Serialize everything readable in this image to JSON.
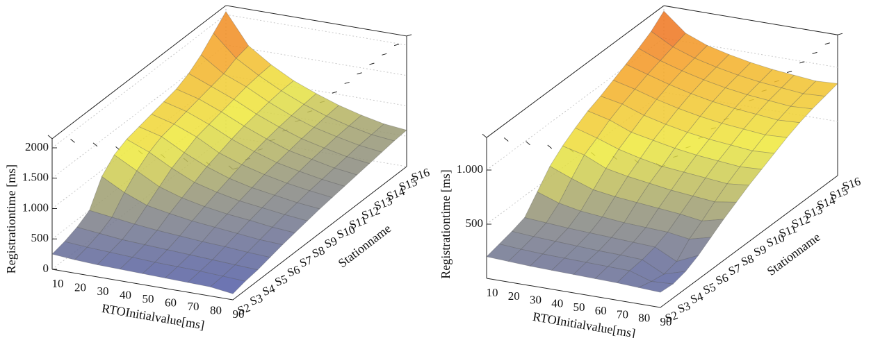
{
  "chart_data": [
    {
      "type": "surface",
      "x": [
        10,
        20,
        30,
        40,
        50,
        60,
        70,
        80,
        90
      ],
      "xlim": [
        10,
        90
      ],
      "xticks": [
        10,
        20,
        30,
        40,
        50,
        60,
        70,
        80,
        90
      ],
      "categories": [
        "S2",
        "S3",
        "S4",
        "S5",
        "S6",
        "S7",
        "S8",
        "S9",
        "S10",
        "S11",
        "S12",
        "S13",
        "S14",
        "S15",
        "S16"
      ],
      "x_label": "RTOInitialvalue[ms]",
      "y_label": "Stationname",
      "z_label": "Registrationtime [ms]",
      "zlim": [
        0,
        2150
      ],
      "zticks": [
        0,
        500,
        {
          "value": 1000,
          "label": "1.000"
        },
        {
          "value": 1500,
          "label": "1.500"
        },
        2000
      ],
      "colormap": [
        "#3f4cb2",
        "#8c8c7c",
        "#eeea3c",
        "#f4a323",
        "#e8451b"
      ],
      "grid": true,
      "z": [
        [
          250,
          220,
          200,
          190,
          180,
          170,
          160,
          150,
          100
        ],
        [
          300,
          270,
          250,
          230,
          210,
          200,
          190,
          170,
          150
        ],
        [
          380,
          340,
          300,
          280,
          260,
          240,
          220,
          200,
          180
        ],
        [
          500,
          450,
          400,
          360,
          330,
          300,
          280,
          250,
          230
        ],
        [
          900,
          700,
          550,
          480,
          420,
          380,
          340,
          300,
          280
        ],
        [
          1100,
          900,
          700,
          580,
          500,
          440,
          400,
          350,
          320
        ],
        [
          1200,
          1050,
          850,
          680,
          580,
          500,
          450,
          400,
          360
        ],
        [
          1250,
          1150,
          950,
          780,
          650,
          560,
          500,
          440,
          400
        ],
        [
          1300,
          1200,
          1050,
          850,
          720,
          620,
          540,
          480,
          430
        ],
        [
          1350,
          1250,
          1100,
          920,
          780,
          660,
          580,
          510,
          460
        ],
        [
          1400,
          1300,
          1150,
          980,
          830,
          700,
          620,
          540,
          490
        ],
        [
          1500,
          1350,
          1200,
          1020,
          870,
          740,
          650,
          570,
          520
        ],
        [
          1650,
          1400,
          1250,
          1060,
          900,
          770,
          680,
          600,
          550
        ],
        [
          1850,
          1500,
          1280,
          1090,
          930,
          800,
          700,
          620,
          580
        ],
        [
          2050,
          1550,
          1300,
          1100,
          950,
          820,
          720,
          640,
          600
        ]
      ]
    },
    {
      "type": "surface",
      "x": [
        10,
        20,
        30,
        40,
        50,
        60,
        70,
        80,
        90
      ],
      "xlim": [
        10,
        90
      ],
      "xticks": [
        10,
        20,
        30,
        40,
        50,
        60,
        70,
        80,
        90
      ],
      "categories": [
        "S2",
        "S3",
        "S4",
        "S5",
        "S6",
        "S7",
        "S8",
        "S9",
        "S10",
        "S11",
        "S12",
        "S13",
        "S14",
        "S15",
        "S16"
      ],
      "x_label": "RTOInitialvalue[ms]",
      "y_label": "Stationname",
      "z_label": "Registrationtime [ms]",
      "zlim": [
        0,
        1300
      ],
      "zticks": [
        500,
        {
          "value": 1000,
          "label": "1.000"
        }
      ],
      "colormap": [
        "#3f4cb2",
        "#8c8c7c",
        "#eeea3c",
        "#f4a323",
        "#e8451b"
      ],
      "grid": true,
      "z": [
        [
          200,
          190,
          180,
          175,
          170,
          165,
          160,
          150,
          140
        ],
        [
          230,
          215,
          205,
          200,
          195,
          190,
          185,
          120,
          130
        ],
        [
          260,
          245,
          235,
          225,
          215,
          210,
          200,
          100,
          160
        ],
        [
          300,
          285,
          270,
          260,
          250,
          240,
          230,
          130,
          220
        ],
        [
          450,
          380,
          340,
          320,
          300,
          290,
          280,
          250,
          300
        ],
        [
          600,
          520,
          450,
          420,
          400,
          380,
          360,
          330,
          380
        ],
        [
          700,
          650,
          560,
          520,
          490,
          460,
          440,
          420,
          450
        ],
        [
          780,
          720,
          650,
          600,
          560,
          540,
          520,
          500,
          520
        ],
        [
          850,
          800,
          720,
          680,
          640,
          610,
          590,
          570,
          580
        ],
        [
          900,
          860,
          790,
          740,
          700,
          670,
          650,
          630,
          640
        ],
        [
          960,
          910,
          850,
          800,
          760,
          730,
          710,
          690,
          700
        ],
        [
          1020,
          960,
          900,
          850,
          810,
          780,
          760,
          740,
          750
        ],
        [
          1080,
          1000,
          940,
          890,
          850,
          820,
          800,
          780,
          790
        ],
        [
          1150,
          1040,
          970,
          920,
          880,
          850,
          830,
          810,
          820
        ],
        [
          1250,
          1080,
          1000,
          950,
          910,
          880,
          860,
          840,
          850
        ]
      ]
    }
  ]
}
